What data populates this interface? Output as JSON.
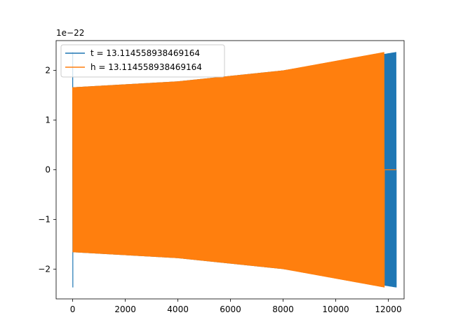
{
  "chart_data": {
    "type": "line",
    "title": "",
    "xlabel": "",
    "ylabel": "",
    "y_offset_label": "1e−22",
    "xlim": [
      -630,
      12600
    ],
    "ylim": [
      -2.6,
      2.6
    ],
    "x_ticks": [
      0,
      2000,
      4000,
      6000,
      8000,
      10000,
      12000
    ],
    "x_tick_labels": [
      "0",
      "2000",
      "4000",
      "6000",
      "8000",
      "10000",
      "12000"
    ],
    "y_ticks": [
      -2,
      -1,
      0,
      1,
      2
    ],
    "y_tick_labels": [
      "−2",
      "−1",
      "0",
      "1",
      "2"
    ],
    "grid": false,
    "legend_position": "upper-left",
    "series": [
      {
        "name": "t = 13.114558938469164",
        "color": "#1f77b4",
        "style": "dense-oscillation",
        "start_x": 0,
        "end_x": 12300,
        "initial_spike": 2.37,
        "amplitude_points": [
          [
            0,
            1.66
          ],
          [
            4000,
            1.78
          ],
          [
            8000,
            2.0
          ],
          [
            12300,
            2.37
          ]
        ],
        "tail_value": 0
      },
      {
        "name": "h = 13.114558938469164",
        "color": "#ff7f0e",
        "style": "dense-oscillation",
        "start_x": 0,
        "end_x": 11850,
        "initial_spike": 0,
        "amplitude_points": [
          [
            0,
            1.66
          ],
          [
            4000,
            1.78
          ],
          [
            8000,
            2.0
          ],
          [
            11850,
            2.37
          ]
        ],
        "tail_end_x": 12300,
        "tail_value": 0
      }
    ]
  }
}
